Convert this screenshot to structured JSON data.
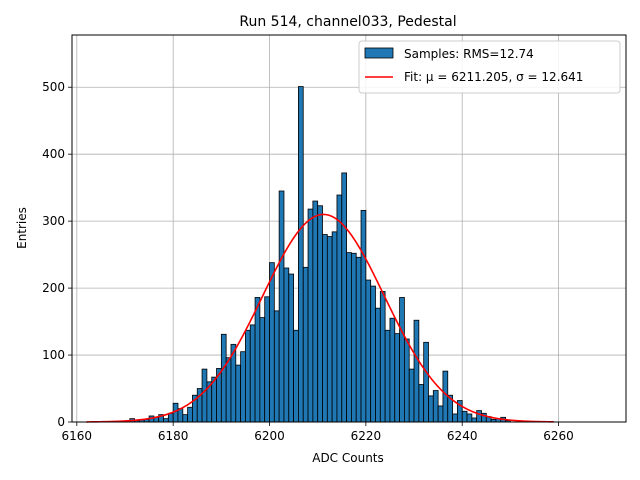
{
  "chart_data": {
    "type": "bar",
    "title": "Run 514, channel033, Pedestal",
    "xlabel": "ADC Counts",
    "ylabel": "Entries",
    "xlim": [
      6159,
      6274
    ],
    "ylim": [
      0,
      578
    ],
    "xticks": [
      6160,
      6180,
      6200,
      6220,
      6240,
      6260
    ],
    "yticks": [
      0,
      100,
      200,
      300,
      400,
      500
    ],
    "grid": true,
    "legend_position": "top-right",
    "colors": {
      "bars": "#1f77b4",
      "fit": "#ff0000",
      "grid": "#b0b0b0"
    },
    "histogram": {
      "name": "Samples: RMS=12.74",
      "bin_width": 1,
      "bins": [
        {
          "x": 6171,
          "y": 5
        },
        {
          "x": 6172,
          "y": 2
        },
        {
          "x": 6173,
          "y": 3
        },
        {
          "x": 6174,
          "y": 4
        },
        {
          "x": 6175,
          "y": 9
        },
        {
          "x": 6176,
          "y": 7
        },
        {
          "x": 6177,
          "y": 11
        },
        {
          "x": 6178,
          "y": 5
        },
        {
          "x": 6179,
          "y": 13
        },
        {
          "x": 6180,
          "y": 28
        },
        {
          "x": 6181,
          "y": 20
        },
        {
          "x": 6182,
          "y": 11
        },
        {
          "x": 6183,
          "y": 22
        },
        {
          "x": 6184,
          "y": 40
        },
        {
          "x": 6185,
          "y": 50
        },
        {
          "x": 6186,
          "y": 79
        },
        {
          "x": 6187,
          "y": 60
        },
        {
          "x": 6188,
          "y": 67
        },
        {
          "x": 6189,
          "y": 80
        },
        {
          "x": 6190,
          "y": 131
        },
        {
          "x": 6191,
          "y": 96
        },
        {
          "x": 6192,
          "y": 116
        },
        {
          "x": 6193,
          "y": 85
        },
        {
          "x": 6194,
          "y": 105
        },
        {
          "x": 6195,
          "y": 137
        },
        {
          "x": 6196,
          "y": 145
        },
        {
          "x": 6197,
          "y": 186
        },
        {
          "x": 6198,
          "y": 156
        },
        {
          "x": 6199,
          "y": 187
        },
        {
          "x": 6200,
          "y": 238
        },
        {
          "x": 6201,
          "y": 166
        },
        {
          "x": 6202,
          "y": 345
        },
        {
          "x": 6203,
          "y": 230
        },
        {
          "x": 6204,
          "y": 221
        },
        {
          "x": 6205,
          "y": 137
        },
        {
          "x": 6206,
          "y": 501
        },
        {
          "x": 6207,
          "y": 231
        },
        {
          "x": 6208,
          "y": 318
        },
        {
          "x": 6209,
          "y": 330
        },
        {
          "x": 6210,
          "y": 323
        },
        {
          "x": 6211,
          "y": 280
        },
        {
          "x": 6212,
          "y": 277
        },
        {
          "x": 6213,
          "y": 284
        },
        {
          "x": 6214,
          "y": 339
        },
        {
          "x": 6215,
          "y": 372
        },
        {
          "x": 6216,
          "y": 253
        },
        {
          "x": 6217,
          "y": 252
        },
        {
          "x": 6218,
          "y": 246
        },
        {
          "x": 6219,
          "y": 316
        },
        {
          "x": 6220,
          "y": 212
        },
        {
          "x": 6221,
          "y": 203
        },
        {
          "x": 6222,
          "y": 170
        },
        {
          "x": 6223,
          "y": 195
        },
        {
          "x": 6224,
          "y": 137
        },
        {
          "x": 6225,
          "y": 155
        },
        {
          "x": 6226,
          "y": 132
        },
        {
          "x": 6227,
          "y": 186
        },
        {
          "x": 6228,
          "y": 124
        },
        {
          "x": 6229,
          "y": 79
        },
        {
          "x": 6230,
          "y": 152
        },
        {
          "x": 6231,
          "y": 56
        },
        {
          "x": 6232,
          "y": 119
        },
        {
          "x": 6233,
          "y": 39
        },
        {
          "x": 6234,
          "y": 47
        },
        {
          "x": 6235,
          "y": 24
        },
        {
          "x": 6236,
          "y": 76
        },
        {
          "x": 6237,
          "y": 40
        },
        {
          "x": 6238,
          "y": 12
        },
        {
          "x": 6239,
          "y": 32
        },
        {
          "x": 6240,
          "y": 16
        },
        {
          "x": 6241,
          "y": 12
        },
        {
          "x": 6242,
          "y": 6
        },
        {
          "x": 6243,
          "y": 17
        },
        {
          "x": 6244,
          "y": 13
        },
        {
          "x": 6245,
          "y": 8
        },
        {
          "x": 6246,
          "y": 4
        },
        {
          "x": 6247,
          "y": 5
        },
        {
          "x": 6248,
          "y": 7
        },
        {
          "x": 6249,
          "y": 2
        }
      ]
    },
    "fit": {
      "name": "Fit: μ = 6211.205, σ = 12.641",
      "mu": 6211.205,
      "sigma": 12.641,
      "amplitude": 310,
      "x_range": [
        6162,
        6259
      ]
    }
  }
}
